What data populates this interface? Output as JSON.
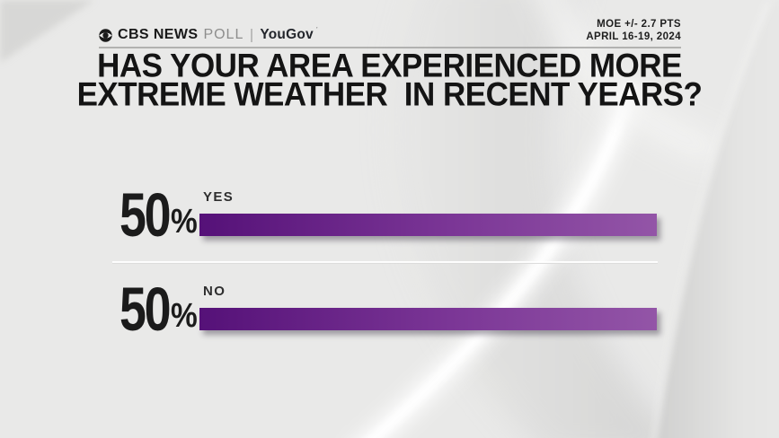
{
  "header": {
    "logo": {
      "cbs": "CBS NEWS",
      "poll": "POLL",
      "separator": "|",
      "partner": "YouGov",
      "partner_mark": "’"
    },
    "moe": {
      "line1": "MOE +/- 2.7 PTS",
      "line2": "APRIL 16-19, 2024"
    }
  },
  "title": {
    "line1": "HAS YOUR AREA EXPERIENCED MORE",
    "line2": "EXTREME WEATHER  IN RECENT YEARS?"
  },
  "chart_data": {
    "type": "bar",
    "orientation": "horizontal",
    "title": "HAS YOUR AREA EXPERIENCED MORE EXTREME WEATHER IN RECENT YEARS?",
    "categories": [
      "YES",
      "NO"
    ],
    "values": [
      50,
      50
    ],
    "value_labels": [
      "50%",
      "50%"
    ],
    "unit": "%",
    "xlim": [
      0,
      50
    ],
    "grid": false,
    "legend": false,
    "bar_colors": {
      "gradient_left": "#551178",
      "gradient_mid": "#7b3696",
      "gradient_right": "#9355a7"
    },
    "annotations": [
      "MOE +/- 2.7 PTS",
      "APRIL 16-19, 2024"
    ]
  },
  "rows": [
    {
      "value": "50",
      "unit": "%",
      "label": "YES",
      "pct": 50
    },
    {
      "value": "50",
      "unit": "%",
      "label": "NO",
      "pct": 50
    }
  ],
  "colors": {
    "background": "#e9e9e8",
    "text": "#1b1b1b",
    "poll_gray": "#8e8e8d",
    "rule_gray": "#9f9f9e"
  }
}
